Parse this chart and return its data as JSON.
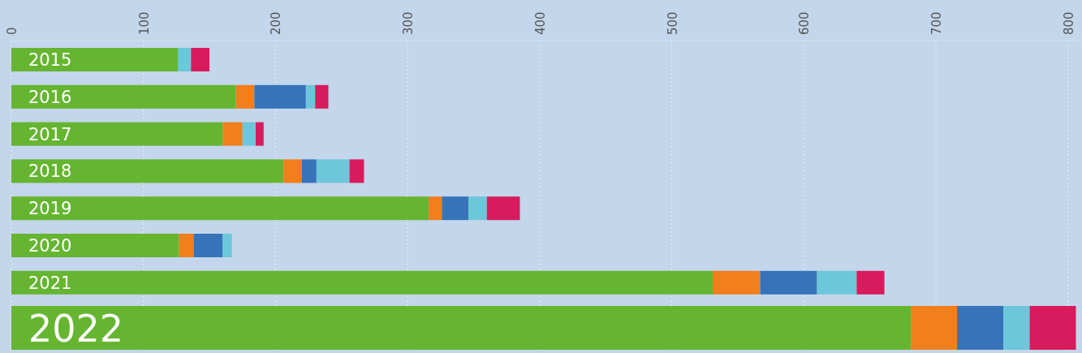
{
  "chart_data": {
    "type": "bar",
    "orientation": "horizontal",
    "stacked": true,
    "categories": [
      "2015",
      "2016",
      "2017",
      "2018",
      "2019",
      "2020",
      "2021",
      "2022"
    ],
    "series": [
      {
        "color": "#65b531",
        "values": [
          126,
          170,
          160,
          206,
          316,
          127,
          531,
          681
        ]
      },
      {
        "color": "#f07f1c",
        "values": [
          0,
          14,
          15,
          14,
          10,
          11,
          36,
          35
        ]
      },
      {
        "color": "#3773b9",
        "values": [
          0,
          39,
          0,
          11,
          20,
          22,
          43,
          35
        ]
      },
      {
        "color": "#6dc7da",
        "values": [
          10,
          7,
          10,
          25,
          14,
          7,
          30,
          20
        ]
      },
      {
        "color": "#d81b5d",
        "values": [
          14,
          10,
          6,
          11,
          25,
          0,
          21,
          35
        ]
      }
    ],
    "xlim": [
      0,
      810
    ],
    "xticks": [
      0,
      100,
      200,
      300,
      400,
      500,
      600,
      700,
      800
    ],
    "grid": "x"
  }
}
